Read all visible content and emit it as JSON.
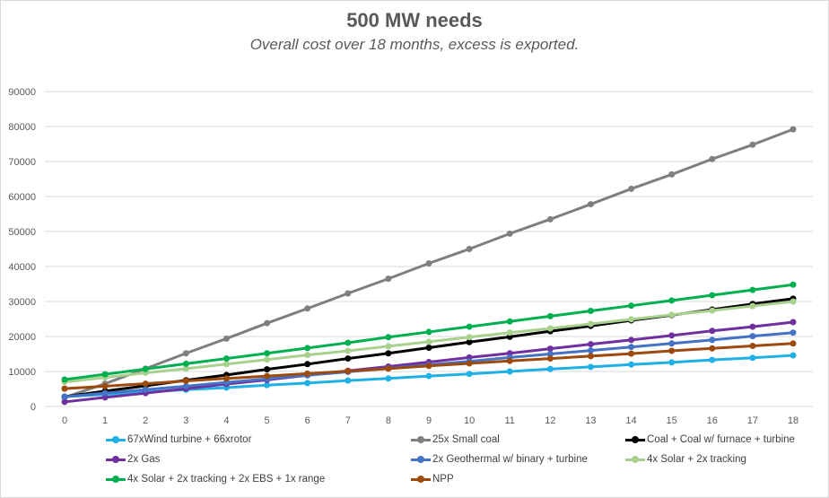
{
  "chart_data": {
    "type": "line",
    "title": "500 MW needs",
    "subtitle": "Overall cost over 18 months, excess is exported.",
    "xlabel": "",
    "ylabel": "",
    "x": [
      0,
      1,
      2,
      3,
      4,
      5,
      6,
      7,
      8,
      9,
      10,
      11,
      12,
      13,
      14,
      15,
      16,
      17,
      18
    ],
    "ylim": [
      0,
      90000
    ],
    "yticks": [
      0,
      10000,
      20000,
      30000,
      40000,
      50000,
      60000,
      70000,
      80000,
      90000
    ],
    "grid": true,
    "legend_position": "bottom",
    "series": [
      {
        "name": "67xWind turbine + 66xrotor",
        "color": "#1fb0e8",
        "values": [
          2800,
          3450,
          4100,
          4800,
          5400,
          6100,
          6700,
          7400,
          8000,
          8700,
          9300,
          10000,
          10700,
          11300,
          12000,
          12600,
          13300,
          13900,
          14600
        ]
      },
      {
        "name": "25x Small coal",
        "color": "#7f7f7f",
        "values": [
          2600,
          6500,
          10800,
          15200,
          19400,
          23800,
          28000,
          32300,
          36500,
          40900,
          45000,
          49400,
          53500,
          57800,
          62200,
          66300,
          70700,
          74800,
          79200
        ]
      },
      {
        "name": "Coal + Coal w/ furnace + turbine",
        "color": "#000000",
        "values": [
          2800,
          4400,
          5900,
          7500,
          9000,
          10600,
          12100,
          13700,
          15200,
          16800,
          18400,
          19900,
          21500,
          23000,
          24600,
          26100,
          27700,
          29300,
          30800
        ]
      },
      {
        "name": "2x Gas",
        "color": "#7030a0",
        "values": [
          1300,
          2600,
          3800,
          5100,
          6400,
          7600,
          8900,
          10200,
          11400,
          12700,
          14000,
          15200,
          16500,
          17800,
          19000,
          20300,
          21600,
          22800,
          24100
        ]
      },
      {
        "name": "2x Geothermal w/ binary + turbine",
        "color": "#4472c4",
        "values": [
          2800,
          3800,
          4800,
          5800,
          6900,
          7900,
          8900,
          9900,
          10900,
          11900,
          12900,
          14000,
          15000,
          16000,
          17000,
          18000,
          19000,
          20100,
          21100
        ]
      },
      {
        "name": "4x Solar + 2x tracking",
        "color": "#a9d18e",
        "values": [
          7000,
          8300,
          9600,
          10800,
          12100,
          13400,
          14700,
          15900,
          17200,
          18500,
          19800,
          21100,
          22300,
          23600,
          24900,
          26200,
          27400,
          28700,
          30000
        ]
      },
      {
        "name": "4x Solar + 2x tracking + 2x EBS + 1x range",
        "color": "#00b050",
        "values": [
          7700,
          9200,
          10700,
          12200,
          13700,
          15200,
          16700,
          18200,
          19800,
          21300,
          22800,
          24300,
          25800,
          27300,
          28800,
          30300,
          31800,
          33300,
          34800
        ]
      },
      {
        "name": "NPP",
        "color": "#9c4a0e",
        "values": [
          5100,
          5800,
          6500,
          7300,
          8000,
          8700,
          9400,
          10100,
          10800,
          11600,
          12300,
          13000,
          13700,
          14400,
          15100,
          15900,
          16600,
          17300,
          18000
        ]
      }
    ]
  }
}
